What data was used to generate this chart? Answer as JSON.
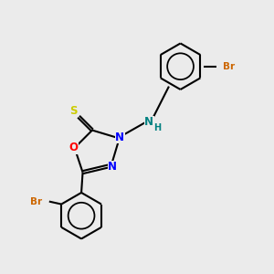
{
  "background_color": "#ebebeb",
  "bond_color": "#000000",
  "atom_colors": {
    "S": "#cccc00",
    "O": "#ff0000",
    "N_ring": "#0000ff",
    "N_amine": "#008080",
    "Br": "#cc6600",
    "C": "#000000"
  },
  "figsize": [
    3.0,
    3.0
  ],
  "dpi": 100,
  "xlim": [
    0,
    10
  ],
  "ylim": [
    0,
    10
  ]
}
